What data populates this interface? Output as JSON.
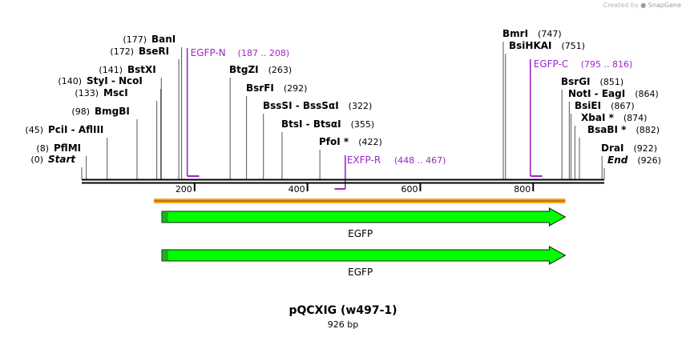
{
  "credit": {
    "prefix": "Created by",
    "brand": "SnapGene"
  },
  "map": {
    "title": "pQCXIG (w497-1)",
    "length_label": "926 bp",
    "total_bp": 926,
    "tick_labels": [
      "200",
      "400",
      "600",
      "800"
    ],
    "ticks": [
      200,
      400,
      600,
      800
    ],
    "colors": {
      "primer": "#9b27c8",
      "feature": "#00ff00",
      "orf": "#f5a623",
      "backbone": "#000000"
    }
  },
  "enzymes": [
    {
      "pos": "(0)",
      "label": "Start",
      "bp": 0,
      "style": "bold-italic",
      "side": "left"
    },
    {
      "pos": "(8)",
      "label": "PflMI",
      "bp": 8,
      "style": "bold",
      "side": "left"
    },
    {
      "pos": "(45)",
      "label": "PciI  - AflIII",
      "bp": 45,
      "style": "bold",
      "side": "left"
    },
    {
      "pos": "(98)",
      "label": "BmgBI",
      "bp": 98,
      "style": "bold",
      "side": "left"
    },
    {
      "pos": "(133)",
      "label": "MscI",
      "bp": 133,
      "style": "bold",
      "side": "left"
    },
    {
      "pos": "(140)",
      "label": "StyI  - NcoI",
      "bp": 140,
      "style": "bold",
      "side": "left"
    },
    {
      "pos": "(141)",
      "label": "BstXI",
      "bp": 141,
      "style": "bold",
      "side": "left"
    },
    {
      "pos": "(172)",
      "label": "BseRI",
      "bp": 172,
      "style": "bold",
      "side": "left"
    },
    {
      "pos": "(177)",
      "label": "BanI",
      "bp": 177,
      "style": "bold",
      "side": "left"
    },
    {
      "pos": "(263)",
      "label": "BtgZI",
      "bp": 263,
      "style": "bold",
      "side": "right"
    },
    {
      "pos": "(292)",
      "label": "BsrFI",
      "bp": 292,
      "style": "bold",
      "side": "right"
    },
    {
      "pos": "(322)",
      "label": "BssSI  - BssSαI",
      "bp": 322,
      "style": "bold",
      "side": "right"
    },
    {
      "pos": "(355)",
      "label": "BtsI  - BtsαI",
      "bp": 355,
      "style": "bold",
      "side": "right"
    },
    {
      "pos": "(422)",
      "label": "PfoI *",
      "bp": 422,
      "style": "bold",
      "side": "right"
    },
    {
      "pos": "(747)",
      "label": "BmrI",
      "bp": 747,
      "style": "bold",
      "side": "right"
    },
    {
      "pos": "(751)",
      "label": "BsiHKAI",
      "bp": 751,
      "style": "bold",
      "side": "right"
    },
    {
      "pos": "(851)",
      "label": "BsrGI",
      "bp": 851,
      "style": "bold",
      "side": "right"
    },
    {
      "pos": "(864)",
      "label": "NotI  - EagI",
      "bp": 864,
      "style": "bold",
      "side": "right"
    },
    {
      "pos": "(867)",
      "label": "BsiEI",
      "bp": 867,
      "style": "bold",
      "side": "right"
    },
    {
      "pos": "(874)",
      "label": "XbaI *",
      "bp": 874,
      "style": "bold",
      "side": "right"
    },
    {
      "pos": "(882)",
      "label": "BsaBI *",
      "bp": 882,
      "style": "bold",
      "side": "right"
    },
    {
      "pos": "(922)",
      "label": "DraI",
      "bp": 922,
      "style": "bold",
      "side": "right"
    },
    {
      "pos": "(926)",
      "label": "End",
      "bp": 926,
      "style": "bold-italic",
      "side": "right"
    }
  ],
  "primers": [
    {
      "name": "EGFP-N",
      "range": "(187 .. 208)",
      "start": 187,
      "end": 208,
      "strand": "forward"
    },
    {
      "name": "EXFP-R",
      "range": "(448 .. 467)",
      "start": 448,
      "end": 467,
      "strand": "reverse"
    },
    {
      "name": "EGFP-C",
      "range": "(795 .. 816)",
      "start": 795,
      "end": 816,
      "strand": "forward"
    }
  ],
  "orf": {
    "start": 128,
    "end": 857
  },
  "features": [
    {
      "label": "EGFP",
      "start": 142,
      "end": 857
    },
    {
      "label": "EGFP",
      "start": 142,
      "end": 857
    }
  ]
}
